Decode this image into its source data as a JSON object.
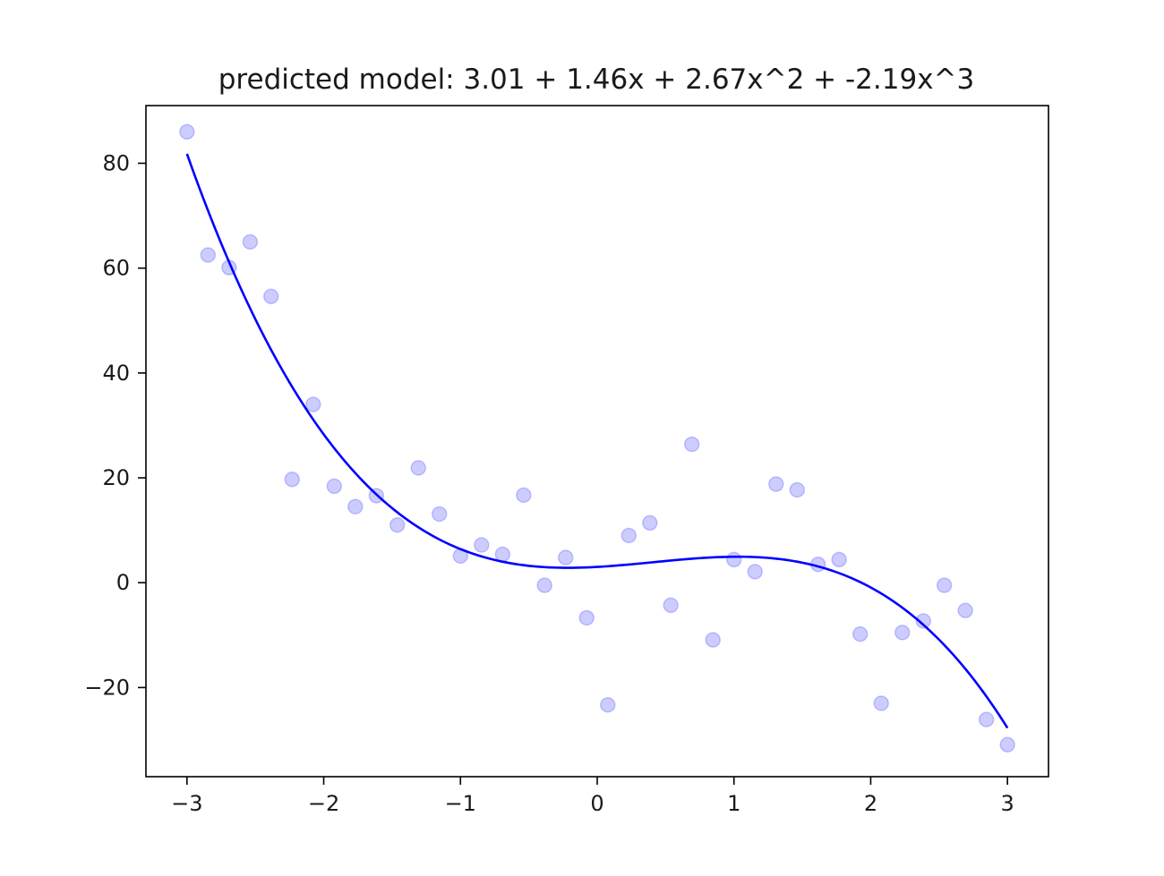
{
  "chart_data": {
    "type": "scatter",
    "title": "predicted model: 3.01 + 1.46x + 2.67x^2 + -2.19x^3",
    "xlabel": "",
    "ylabel": "",
    "xlim": [
      -3.3,
      3.3
    ],
    "ylim": [
      -37,
      91
    ],
    "x_ticks": [
      -3,
      -2,
      -1,
      0,
      1,
      2,
      3
    ],
    "x_tick_labels": [
      "−3",
      "−2",
      "−1",
      "0",
      "1",
      "2",
      "3"
    ],
    "y_ticks": [
      -20,
      0,
      20,
      40,
      60,
      80
    ],
    "y_tick_labels": [
      "−20",
      "0",
      "20",
      "40",
      "60",
      "80"
    ],
    "grid": false,
    "series": [
      {
        "kind": "scatter",
        "color": "#0000ff",
        "alpha": 0.2,
        "x": [
          -3.0,
          -2.846,
          -2.692,
          -2.538,
          -2.385,
          -2.077,
          -2.231,
          -1.923,
          -1.769,
          -1.615,
          -1.462,
          -1.308,
          -1.154,
          -1.0,
          -0.846,
          -0.692,
          -0.538,
          -0.385,
          -0.231,
          -0.077,
          0.077,
          0.231,
          0.385,
          0.538,
          0.692,
          0.846,
          1.0,
          1.154,
          1.308,
          1.462,
          1.615,
          1.769,
          1.923,
          2.077,
          2.231,
          2.385,
          2.538,
          2.692,
          2.846,
          3.0
        ],
        "y": [
          86.0,
          62.5,
          60.1,
          65.0,
          54.6,
          34.0,
          19.7,
          18.4,
          14.5,
          16.6,
          11.0,
          21.9,
          13.1,
          5.1,
          7.2,
          5.4,
          16.7,
          -0.5,
          4.8,
          -6.7,
          -23.3,
          9.0,
          11.4,
          -4.3,
          26.4,
          -10.9,
          4.4,
          2.1,
          18.8,
          17.7,
          3.5,
          4.4,
          -9.8,
          -23.0,
          -9.5,
          -7.3,
          -0.5,
          -5.3,
          -26.1,
          -30.9
        ]
      },
      {
        "kind": "line",
        "color": "#0000ff",
        "model_coefficients": [
          3.01,
          1.46,
          2.67,
          -2.19
        ],
        "x_range": [
          -3,
          3
        ]
      }
    ]
  }
}
